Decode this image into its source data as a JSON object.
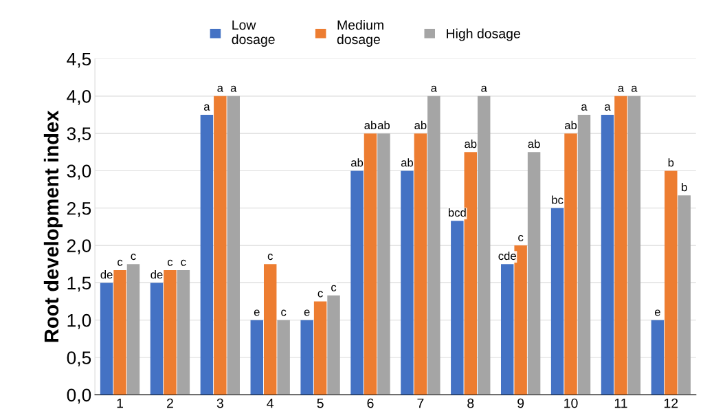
{
  "chart_data": {
    "type": "bar",
    "ylabel": "Root development index",
    "categories": [
      "1",
      "2",
      "3",
      "4",
      "5",
      "6",
      "7",
      "8",
      "9",
      "10",
      "11",
      "12"
    ],
    "series": [
      {
        "name": "Low\ndosage",
        "color": "#4472c4",
        "values": [
          1.5,
          1.5,
          3.75,
          1.0,
          1.0,
          3.0,
          3.0,
          2.33,
          1.75,
          2.5,
          3.75,
          1.0
        ],
        "value_labels": [
          "de",
          "de",
          "a",
          "e",
          "e",
          "ab",
          "ab",
          "bcd",
          "cde",
          "bc",
          "a",
          "e"
        ]
      },
      {
        "name": "Medium\ndosage",
        "color": "#ed7d31",
        "values": [
          1.67,
          1.67,
          4.0,
          1.75,
          1.25,
          3.5,
          3.5,
          3.25,
          2.0,
          3.5,
          4.0,
          3.0
        ],
        "value_labels": [
          "c",
          "c",
          "a",
          "c",
          "c",
          "ab",
          "ab",
          "ab",
          "c",
          "ab",
          "a",
          "b"
        ]
      },
      {
        "name": "High dosage",
        "color": "#a5a5a5",
        "values": [
          1.75,
          1.67,
          4.0,
          1.0,
          1.33,
          3.5,
          4.0,
          4.0,
          3.25,
          3.75,
          4.0,
          2.67
        ],
        "value_labels": [
          "c",
          "c",
          "a",
          "c",
          "c",
          "ab",
          "a",
          "a",
          "ab",
          "a",
          "a",
          "b"
        ]
      }
    ],
    "ylim": [
      0,
      4.5
    ],
    "yticks": [
      {
        "value": 0,
        "label": "0,0"
      },
      {
        "value": 0.5,
        "label": "0,5"
      },
      {
        "value": 1,
        "label": "1,0"
      },
      {
        "value": 1.5,
        "label": "1,5"
      },
      {
        "value": 2,
        "label": "2,0"
      },
      {
        "value": 2.5,
        "label": "2,5"
      },
      {
        "value": 3,
        "label": "3,0"
      },
      {
        "value": 3.5,
        "label": "3,5"
      },
      {
        "value": 4,
        "label": "4,0"
      },
      {
        "value": 4.5,
        "label": "4,5"
      }
    ],
    "grid": "y",
    "legend": "top"
  }
}
